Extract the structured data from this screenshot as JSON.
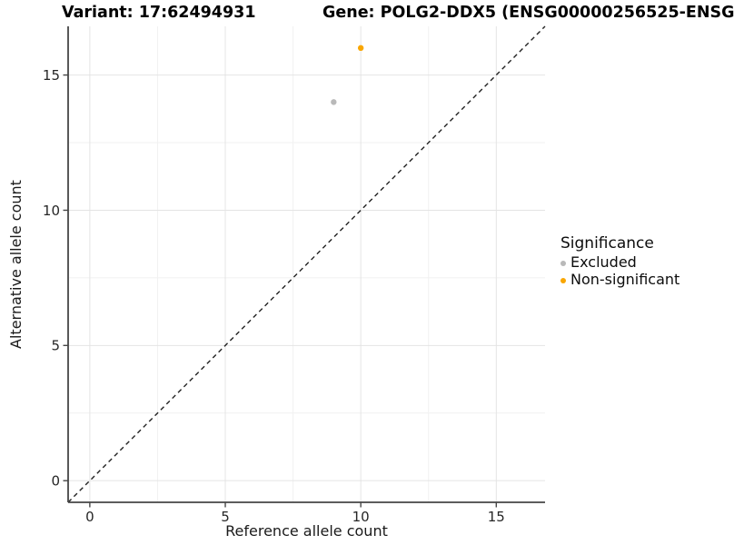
{
  "chart_data": {
    "type": "scatter",
    "title_variant": "Variant: 17:62494931",
    "title_gene": "Gene: POLG2-DDX5 (ENSG00000256525-ENSG",
    "xlabel": "Reference allele count",
    "ylabel": "Alternative allele count",
    "xlim": [
      -0.8,
      16.8
    ],
    "ylim": [
      -0.8,
      16.8
    ],
    "x_major_ticks": [
      0,
      5,
      10,
      15
    ],
    "y_major_ticks": [
      0,
      5,
      10,
      15
    ],
    "x_minor_ticks": [
      2.5,
      7.5,
      12.5
    ],
    "y_minor_ticks": [
      2.5,
      7.5,
      12.5
    ],
    "grid": true,
    "identity_line": {
      "type": "y=x",
      "style": "dashed",
      "color": "#222222"
    },
    "series": [
      {
        "name": "Excluded",
        "color": "#b9b9b9",
        "points": [
          [
            9,
            14
          ]
        ]
      },
      {
        "name": "Non-significant",
        "color": "#f9a602",
        "points": [
          [
            10,
            16
          ]
        ]
      }
    ],
    "legend": {
      "title": "Significance",
      "position": "right",
      "items": [
        {
          "label": "Excluded",
          "color": "#b9b9b9"
        },
        {
          "label": "Non-significant",
          "color": "#f9a602"
        }
      ]
    },
    "colors": {
      "grid_major": "#e4e4e4",
      "grid_minor": "#f1f1f1",
      "axis_line": "#464646",
      "tick_label": "#262626",
      "background": "#ffffff"
    }
  }
}
